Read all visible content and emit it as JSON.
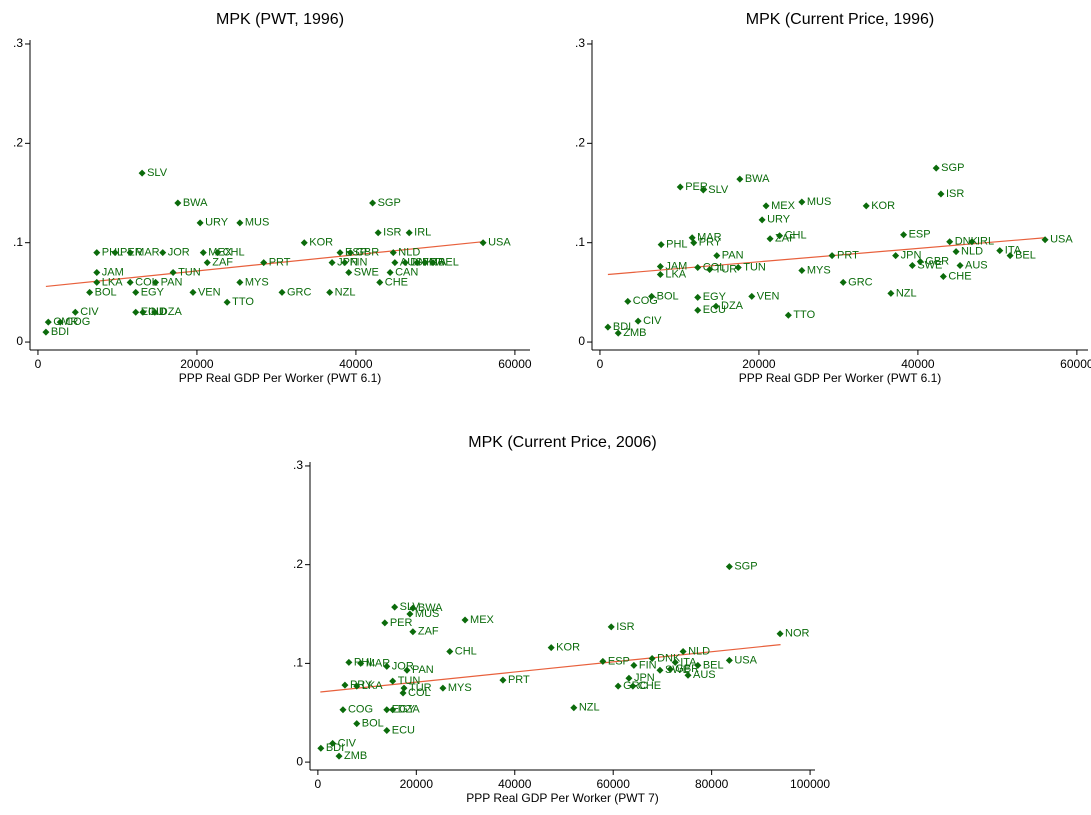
{
  "chart_data": [
    {
      "type": "scatter",
      "title": "MPK (PWT, 1996)",
      "xlabel": "PPP Real GDP Per Worker (PWT 6.1)",
      "xlim": [
        -1000,
        61900
      ],
      "ylim": [
        -0.008,
        0.304
      ],
      "xticks": [
        0,
        20000,
        40000,
        60000
      ],
      "yticks": [
        0,
        {
          "value": 0.1,
          "label": ".1"
        },
        {
          "value": 0.2,
          "label": ".2"
        },
        {
          "value": 0.3,
          "label": ".3"
        }
      ],
      "color": "#0b6b0b",
      "point_labels": [
        "SLV",
        "BWA",
        "URY",
        "MUS",
        "SGP",
        "ISR",
        "IRL",
        "KOR",
        "USA",
        "PHL",
        "PER",
        "MAR",
        "JOR",
        "MEX",
        "CHL",
        "ZAF",
        "JAM",
        "TUN",
        "LKA",
        "COL",
        "PAN",
        "BOL",
        "EGY",
        "VEN",
        "MYS",
        "PRT",
        "TTO",
        "GRC",
        "NZL",
        "ESP",
        "GBR",
        "JPN",
        "FIN",
        "SWE",
        "CHE",
        "CAN",
        "NLD",
        "AUS",
        "DNK",
        "FRA",
        "ITA",
        "BEL",
        "ECU",
        "IND",
        "DZA",
        "CIV",
        "CMR",
        "COG",
        "BDI"
      ],
      "x": [
        13100,
        17600,
        20400,
        25400,
        42100,
        42800,
        46700,
        33500,
        56000,
        7400,
        9700,
        11600,
        15700,
        20800,
        22600,
        21300,
        7400,
        17000,
        7400,
        11600,
        14800,
        6500,
        12300,
        19500,
        25400,
        28400,
        23800,
        30700,
        36700,
        38000,
        39300,
        37000,
        38600,
        39100,
        43000,
        44300,
        44700,
        44900,
        46200,
        47700,
        48700,
        49700,
        12300,
        13200,
        14700,
        4700,
        1300,
        2800,
        1000
      ],
      "y": [
        0.17,
        0.14,
        0.12,
        0.12,
        0.14,
        0.11,
        0.11,
        0.1,
        0.1,
        0.09,
        0.09,
        0.09,
        0.09,
        0.09,
        0.09,
        0.08,
        0.07,
        0.07,
        0.06,
        0.06,
        0.06,
        0.05,
        0.05,
        0.05,
        0.06,
        0.08,
        0.04,
        0.05,
        0.05,
        0.09,
        0.09,
        0.08,
        0.08,
        0.07,
        0.06,
        0.07,
        0.09,
        0.08,
        0.08,
        0.08,
        0.08,
        0.08,
        0.03,
        0.03,
        0.03,
        0.03,
        0.02,
        0.02,
        0.01
      ],
      "fit": {
        "color": "#e8603c",
        "x": [
          1000,
          56000
        ],
        "y": [
          0.056,
          0.101
        ]
      }
    },
    {
      "type": "scatter",
      "title": "MPK (Current Price, 1996)",
      "xlabel": "PPP Real GDP Per Worker (PWT 6.1)",
      "xlim": [
        -1000,
        61400
      ],
      "ylim": [
        -0.008,
        0.304
      ],
      "xticks": [
        0,
        20000,
        40000,
        60000
      ],
      "yticks": [
        0,
        {
          "value": 0.1,
          "label": ".1"
        },
        {
          "value": 0.2,
          "label": ".2"
        },
        {
          "value": 0.3,
          "label": ".3"
        }
      ],
      "color": "#0b6b0b",
      "point_labels": [
        "SGP",
        "ISR",
        "BWA",
        "PER",
        "SLV",
        "MEX",
        "MUS",
        "KOR",
        "URY",
        "ESP",
        "CHL",
        "ZAF",
        "USA",
        "MAR",
        "PHL",
        "PRY",
        "PAN",
        "PRT",
        "JPN",
        "DNK",
        "IRL",
        "ITA",
        "BEL",
        "NLD",
        "SWE",
        "GBR",
        "AUS",
        "CHE",
        "MYS",
        "GRC",
        "NZL",
        "JAM",
        "LKA",
        "COL",
        "TUN",
        "TUR",
        "BOL",
        "COG",
        "EGY",
        "DZA",
        "VEN",
        "ECU",
        "TTO",
        "CIV",
        "BDI",
        "ZMB"
      ],
      "x": [
        42300,
        42900,
        17600,
        10100,
        13000,
        20900,
        25400,
        33500,
        20400,
        38200,
        22600,
        21400,
        56000,
        11600,
        7700,
        11800,
        14700,
        29200,
        37200,
        44000,
        46800,
        50300,
        51600,
        44800,
        39300,
        40300,
        45300,
        43200,
        25400,
        30600,
        36600,
        7600,
        7600,
        12300,
        17400,
        13800,
        6500,
        3500,
        12300,
        14600,
        19100,
        12300,
        23700,
        4800,
        1000,
        2300
      ],
      "y": [
        0.175,
        0.149,
        0.164,
        0.156,
        0.153,
        0.137,
        0.141,
        0.137,
        0.123,
        0.108,
        0.107,
        0.104,
        0.103,
        0.105,
        0.098,
        0.1,
        0.087,
        0.087,
        0.087,
        0.101,
        0.101,
        0.092,
        0.087,
        0.091,
        0.077,
        0.081,
        0.077,
        0.066,
        0.072,
        0.06,
        0.049,
        0.076,
        0.068,
        0.075,
        0.075,
        0.073,
        0.046,
        0.041,
        0.045,
        0.036,
        0.046,
        0.032,
        0.027,
        0.021,
        0.015,
        0.009
      ],
      "fit": {
        "color": "#e8603c",
        "x": [
          1000,
          56000
        ],
        "y": [
          0.068,
          0.105
        ]
      }
    },
    {
      "type": "scatter",
      "title": "MPK (Current Price, 2006)",
      "xlabel": "PPP Real GDP Per Worker (PWT 7)",
      "xlim": [
        -1600,
        101000
      ],
      "ylim": [
        -0.008,
        0.304
      ],
      "xticks": [
        0,
        20000,
        40000,
        60000,
        80000,
        100000
      ],
      "yticks": [
        0,
        {
          "value": 0.1,
          "label": ".1"
        },
        {
          "value": 0.2,
          "label": ".2"
        },
        {
          "value": 0.3,
          "label": ".3"
        }
      ],
      "color": "#0b6b0b",
      "point_labels": [
        "SGP",
        "NOR",
        "USA",
        "ISR",
        "KOR",
        "MEX",
        "SLV",
        "BWA",
        "MUS",
        "PER",
        "ZAF",
        "CHL",
        "PHL",
        "MAR",
        "JOR",
        "PAN",
        "ESP",
        "PRT",
        "NZL",
        "NLD",
        "DNK",
        "FIN",
        "JPN",
        "GRC",
        "CHE",
        "SWE",
        "BEL",
        "AUS",
        "GBR",
        "ITA",
        "PRY",
        "LKA",
        "TUN",
        "TUR",
        "COL",
        "MYS",
        "COG",
        "EGY",
        "DZA",
        "BOL",
        "ECU",
        "CIV",
        "BDI",
        "ZMB"
      ],
      "x": [
        83600,
        93900,
        83600,
        59600,
        47400,
        29900,
        15600,
        19300,
        18700,
        13600,
        19300,
        26800,
        6300,
        8700,
        14000,
        18100,
        57900,
        37600,
        52000,
        74200,
        67900,
        64200,
        63200,
        61000,
        64000,
        69500,
        77200,
        75200,
        71600,
        72600,
        5500,
        7900,
        15200,
        17500,
        17300,
        25400,
        5100,
        14000,
        15200,
        7900,
        14000,
        3000,
        600,
        4300
      ],
      "y": [
        0.198,
        0.13,
        0.103,
        0.137,
        0.116,
        0.144,
        0.157,
        0.156,
        0.15,
        0.141,
        0.132,
        0.112,
        0.101,
        0.1,
        0.097,
        0.093,
        0.102,
        0.083,
        0.055,
        0.112,
        0.105,
        0.098,
        0.085,
        0.077,
        0.077,
        0.093,
        0.098,
        0.088,
        0.094,
        0.101,
        0.078,
        0.077,
        0.082,
        0.075,
        0.07,
        0.075,
        0.053,
        0.053,
        0.053,
        0.039,
        0.032,
        0.019,
        0.014,
        0.006
      ],
      "fit": {
        "color": "#e8603c",
        "x": [
          500,
          94000
        ],
        "y": [
          0.071,
          0.119
        ]
      }
    }
  ]
}
